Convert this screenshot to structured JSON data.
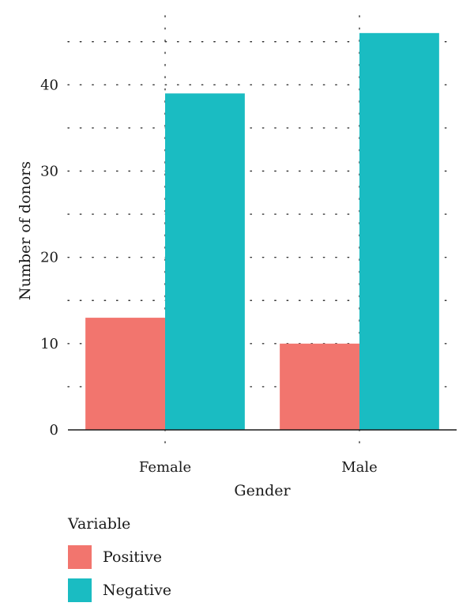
{
  "chart_data": {
    "type": "bar",
    "categories": [
      "Female",
      "Male"
    ],
    "series": [
      {
        "name": "Positive",
        "values": [
          13,
          10
        ],
        "color": "#F2756E"
      },
      {
        "name": "Negative",
        "values": [
          39,
          46
        ],
        "color": "#1ABCC2"
      }
    ],
    "xlabel": "Gender",
    "ylabel": "Number of donors",
    "ylim": [
      0,
      48
    ],
    "yticks": [
      0,
      10,
      20,
      30,
      40
    ],
    "grid": true,
    "legend": {
      "title": "Variable",
      "position": "bottom-left"
    }
  }
}
